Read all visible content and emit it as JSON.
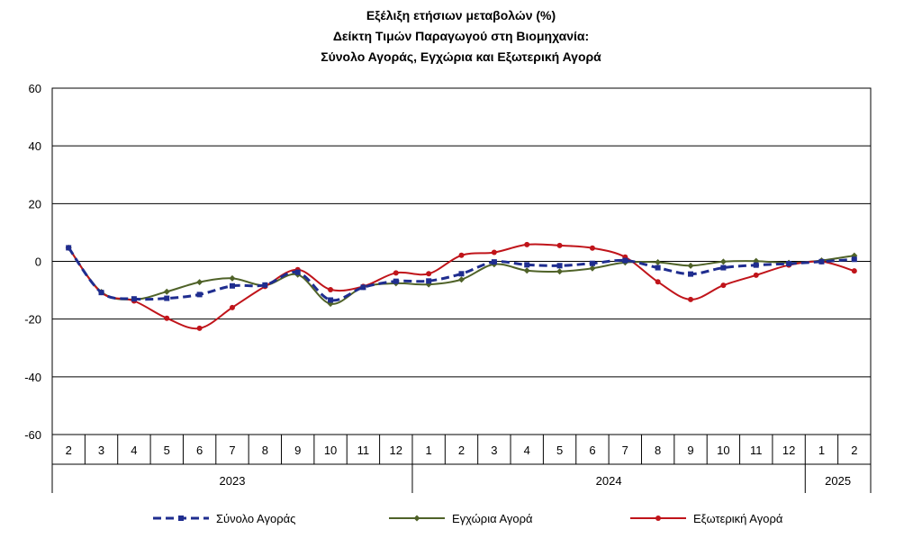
{
  "chart_data": {
    "type": "line",
    "title": [
      "Εξέλιξη ετήσιων μεταβολών (%)",
      "Δείκτη Τιμών Παραγωγού στη Βιομηχανία:",
      "Σύνολο Αγοράς, Εγχώρια και Εξωτερική Αγορά"
    ],
    "ylim": [
      -60,
      60
    ],
    "yticks": [
      "60",
      "40",
      "20",
      "0",
      "-20",
      "-40",
      "-60"
    ],
    "categories": [
      "2",
      "3",
      "4",
      "5",
      "6",
      "7",
      "8",
      "9",
      "10",
      "11",
      "12",
      "1",
      "2",
      "3",
      "4",
      "5",
      "6",
      "7",
      "8",
      "9",
      "10",
      "11",
      "12",
      "1",
      "2"
    ],
    "year_groups": [
      {
        "label": "2023",
        "count": 11
      },
      {
        "label": "2024",
        "count": 12
      },
      {
        "label": "2025",
        "count": 2
      }
    ],
    "grid": true,
    "legend_position": "bottom",
    "series": [
      {
        "name": "Σύνολο Αγοράς",
        "color": "#1f2d8f",
        "style": "dashed",
        "marker": "square",
        "values": [
          4.7,
          -10.8,
          -13.0,
          -12.8,
          -11.5,
          -8.5,
          -8.2,
          -3.8,
          -13.4,
          -9.0,
          -6.9,
          -6.8,
          -4.3,
          -0.2,
          -1.2,
          -1.5,
          -0.7,
          0.3,
          -2.2,
          -4.4,
          -2.2,
          -1.3,
          -0.8,
          -0.1,
          0.7
        ]
      },
      {
        "name": "Εγχώρια Αγορά",
        "color": "#4f6228",
        "style": "solid",
        "marker": "diamond",
        "values": [
          4.7,
          -10.6,
          -13.2,
          -10.5,
          -7.2,
          -5.9,
          -8.3,
          -4.6,
          -14.7,
          -8.9,
          -7.6,
          -8.0,
          -6.3,
          -1.0,
          -3.2,
          -3.5,
          -2.4,
          -0.4,
          -0.3,
          -1.5,
          -0.1,
          0.1,
          -0.5,
          0.3,
          2.0
        ]
      },
      {
        "name": "Εξωτερική Αγορά",
        "color": "#c0141a",
        "style": "solid",
        "marker": "circle",
        "values": [
          4.7,
          -10.8,
          -13.7,
          -19.7,
          -23.2,
          -16.0,
          -8.7,
          -2.9,
          -9.8,
          -8.7,
          -4.0,
          -4.3,
          2.1,
          3.1,
          5.8,
          5.5,
          4.6,
          1.5,
          -7.1,
          -13.2,
          -8.3,
          -4.8,
          -1.3,
          -0.1,
          -3.3
        ]
      }
    ]
  }
}
